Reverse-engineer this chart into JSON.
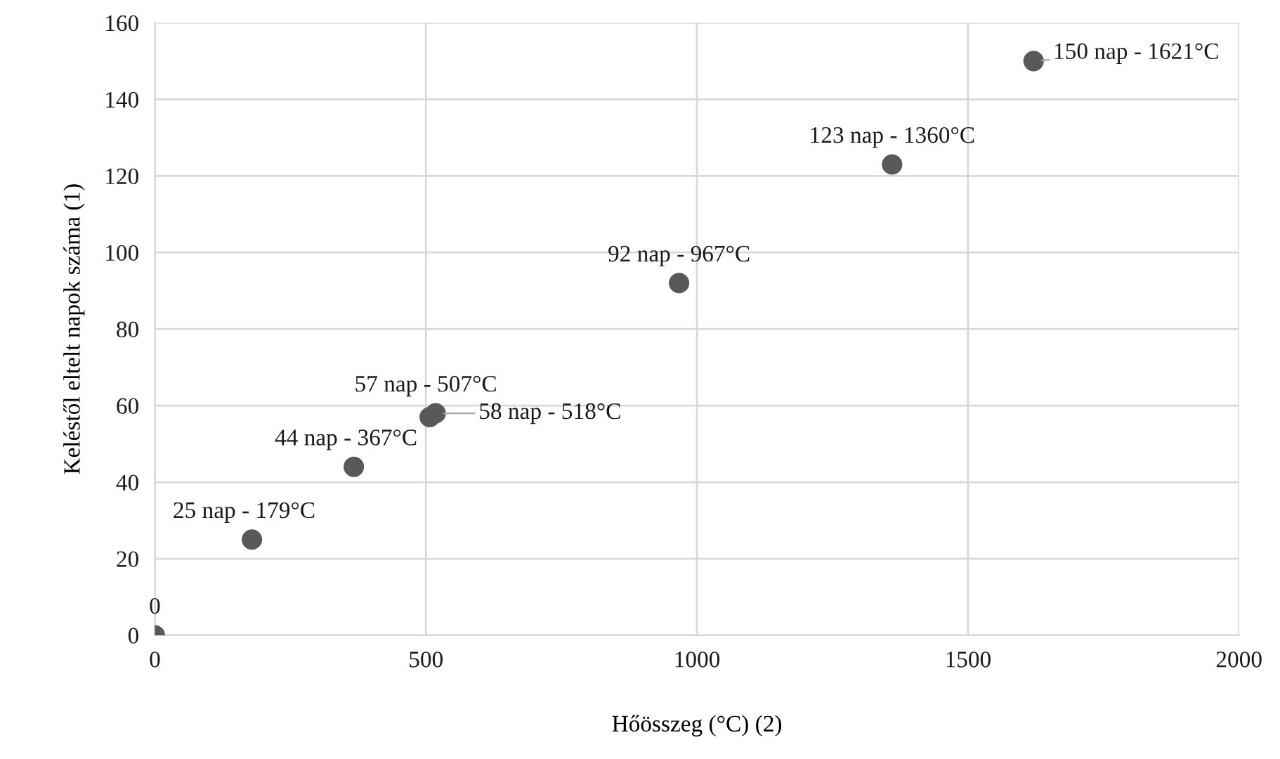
{
  "chart_data": {
    "type": "scatter",
    "xlabel": "Hőösszeg (°C) (2)",
    "ylabel": "Keléstől eltelt napok száma (1)",
    "x": [
      0,
      179,
      367,
      507,
      518,
      967,
      1360,
      1621
    ],
    "series": [
      {
        "color": "#595959",
        "values": [
          0,
          25,
          44,
          57,
          58,
          92,
          123,
          150
        ],
        "value_labels": [
          "0",
          "25 nap - 179°C",
          "44 nap - 367°C",
          "57 nap - 507°C",
          "58 nap - 518°C",
          "92 nap - 967°C",
          "123 nap - 1360°C",
          "150 nap - 1621°C"
        ]
      }
    ],
    "xlim": [
      0,
      2000
    ],
    "xticks": [
      0,
      500,
      1000,
      1500,
      2000
    ],
    "ylim": [
      0,
      160
    ],
    "yticks": [
      0,
      20,
      40,
      60,
      80,
      100,
      120,
      140,
      160
    ],
    "grid": true,
    "marker": "circle"
  }
}
